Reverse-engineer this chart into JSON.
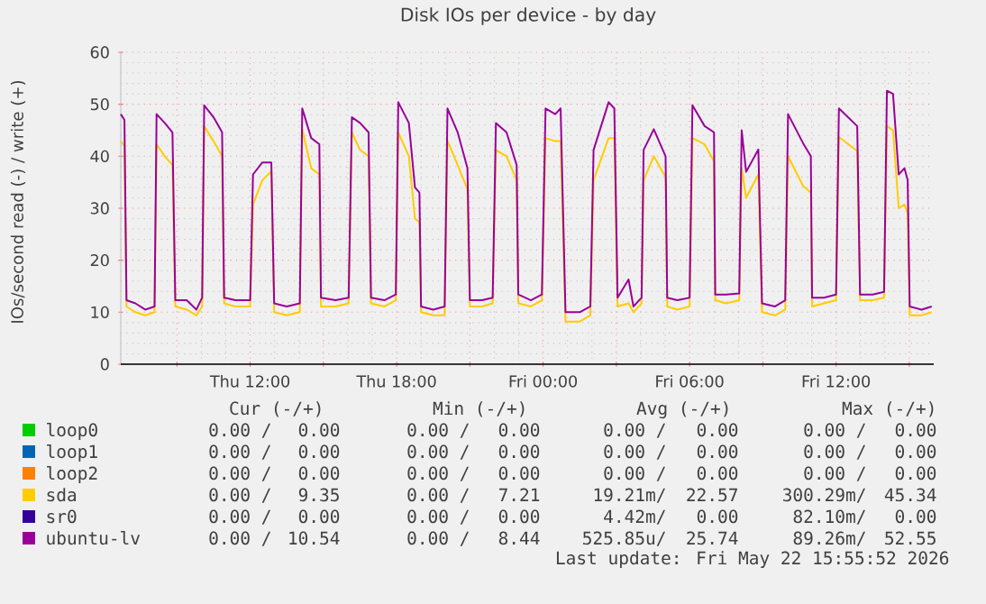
{
  "chart_data": {
    "type": "line",
    "title": "Disk IOs per device - by day",
    "ylabel": "IOs/second read (-) / write (+)",
    "xlim": [
      "2026-05-21T06:42",
      "2026-05-22T16:00"
    ],
    "ylim": [
      0,
      60
    ],
    "xticks": [
      {
        "value": "2026-05-21T09:00",
        "label": null
      },
      {
        "value": "2026-05-21T12:00",
        "label": "Thu 12:00"
      },
      {
        "value": "2026-05-21T15:00",
        "label": null
      },
      {
        "value": "2026-05-21T18:00",
        "label": "Thu 18:00"
      },
      {
        "value": "2026-05-21T21:00",
        "label": null
      },
      {
        "value": "2026-05-22T00:00",
        "label": "Fri 00:00"
      },
      {
        "value": "2026-05-22T03:00",
        "label": null
      },
      {
        "value": "2026-05-22T06:00",
        "label": "Fri 06:00"
      },
      {
        "value": "2026-05-22T09:00",
        "label": null
      },
      {
        "value": "2026-05-22T12:00",
        "label": "Fri 12:00"
      },
      {
        "value": "2026-05-22T15:00",
        "label": null
      }
    ],
    "yticks": [
      0,
      10,
      20,
      30,
      40,
      50,
      60
    ],
    "grid": true,
    "legend": "bottom",
    "series": [
      {
        "name": "loop0",
        "color": "#00cc00"
      },
      {
        "name": "loop1",
        "color": "#0066b3"
      },
      {
        "name": "loop2",
        "color": "#ff8000"
      },
      {
        "name": "sda",
        "color": "#ffcc00",
        "x": [
          "2026-05-21T06:42",
          "2026-05-21T06:51",
          "2026-05-21T06:56",
          "2026-05-21T07:18",
          "2026-05-21T07:42",
          "2026-05-21T08:05",
          "2026-05-21T08:10",
          "2026-05-21T08:30",
          "2026-05-21T08:49",
          "2026-05-21T08:56",
          "2026-05-21T09:24",
          "2026-05-21T09:48",
          "2026-05-21T10:02",
          "2026-05-21T10:07",
          "2026-05-21T10:30",
          "2026-05-21T10:51",
          "2026-05-21T10:56",
          "2026-05-21T11:24",
          "2026-05-21T12:00",
          "2026-05-21T12:07",
          "2026-05-21T12:30",
          "2026-05-21T12:52",
          "2026-05-21T12:59",
          "2026-05-21T13:30",
          "2026-05-21T14:02",
          "2026-05-21T14:08",
          "2026-05-21T14:30",
          "2026-05-21T14:50",
          "2026-05-21T14:54",
          "2026-05-21T15:30",
          "2026-05-21T16:02",
          "2026-05-21T16:10",
          "2026-05-21T16:30",
          "2026-05-21T16:51",
          "2026-05-21T16:57",
          "2026-05-21T17:30",
          "2026-05-21T17:58",
          "2026-05-21T18:04",
          "2026-05-21T18:30",
          "2026-05-21T18:45",
          "2026-05-21T18:56",
          "2026-05-21T19:00",
          "2026-05-21T19:30",
          "2026-05-21T19:58",
          "2026-05-21T20:05",
          "2026-05-21T20:30",
          "2026-05-21T20:54",
          "2026-05-21T21:00",
          "2026-05-21T21:30",
          "2026-05-21T21:56",
          "2026-05-21T22:04",
          "2026-05-21T22:30",
          "2026-05-21T22:55",
          "2026-05-21T22:59",
          "2026-05-21T23:30",
          "2026-05-21T23:57",
          "2026-05-22T00:06",
          "2026-05-22T00:30",
          "2026-05-22T00:43",
          "2026-05-22T00:55",
          "2026-05-22T01:30",
          "2026-05-22T01:56",
          "2026-05-22T02:04",
          "2026-05-22T02:41",
          "2026-05-22T02:55",
          "2026-05-22T03:03",
          "2026-05-22T03:30",
          "2026-05-22T03:42",
          "2026-05-22T04:02",
          "2026-05-22T04:07",
          "2026-05-22T04:32",
          "2026-05-22T05:01",
          "2026-05-22T05:05",
          "2026-05-22T05:30",
          "2026-05-22T06:00",
          "2026-05-22T06:07",
          "2026-05-22T06:37",
          "2026-05-22T07:00",
          "2026-05-22T07:03",
          "2026-05-22T07:30",
          "2026-05-22T08:02",
          "2026-05-22T08:08",
          "2026-05-22T08:19",
          "2026-05-22T08:49",
          "2026-05-22T08:58",
          "2026-05-22T09:30",
          "2026-05-22T09:55",
          "2026-05-22T10:02",
          "2026-05-22T10:39",
          "2026-05-22T10:58",
          "2026-05-22T11:01",
          "2026-05-22T11:30",
          "2026-05-22T12:00",
          "2026-05-22T12:07",
          "2026-05-22T12:52",
          "2026-05-22T12:59",
          "2026-05-22T13:30",
          "2026-05-22T13:58",
          "2026-05-22T14:05",
          "2026-05-22T14:20",
          "2026-05-22T14:34",
          "2026-05-22T14:48",
          "2026-05-22T14:56",
          "2026-05-22T15:01",
          "2026-05-22T15:30",
          "2026-05-22T15:55"
        ],
        "values": [
          42.9,
          42,
          11.1,
          10,
          9.4,
          10,
          42.3,
          40,
          38.3,
          11.1,
          10.5,
          9.4,
          11.1,
          45.8,
          42.9,
          40,
          11.7,
          11.1,
          11.1,
          30.7,
          35.4,
          37.1,
          10,
          9.4,
          10,
          45.2,
          37.7,
          36.5,
          11.1,
          11.1,
          11.7,
          44.6,
          41.2,
          40,
          11.7,
          11.1,
          12.3,
          44.6,
          40,
          28,
          27.3,
          10,
          9.4,
          9.4,
          43,
          38.3,
          33.6,
          11.1,
          11.1,
          11.7,
          41.2,
          40,
          35.4,
          11.7,
          11.1,
          12.3,
          43.5,
          42.9,
          42.9,
          8.2,
          8.2,
          9.4,
          35.4,
          43.5,
          43.5,
          11.1,
          11.7,
          10,
          11.7,
          35.4,
          40,
          36,
          11.1,
          10.5,
          11.1,
          43.5,
          42.3,
          39,
          12.3,
          11.7,
          12.3,
          37.7,
          32,
          36.5,
          10,
          9.4,
          10.5,
          40,
          34.3,
          33,
          11.1,
          11.7,
          12.3,
          43.7,
          41,
          12.3,
          12.3,
          12.8,
          45.8,
          45,
          30,
          30.7,
          29,
          9.4,
          9.4,
          10
        ]
      },
      {
        "name": "sr0",
        "color": "#330099"
      },
      {
        "name": "ubuntu-lv",
        "color": "#990099",
        "x": [
          "2026-05-21T06:42",
          "2026-05-21T06:51",
          "2026-05-21T06:56",
          "2026-05-21T07:18",
          "2026-05-21T07:42",
          "2026-05-21T08:05",
          "2026-05-21T08:10",
          "2026-05-21T08:30",
          "2026-05-21T08:49",
          "2026-05-21T08:56",
          "2026-05-21T09:24",
          "2026-05-21T09:48",
          "2026-05-21T10:02",
          "2026-05-21T10:07",
          "2026-05-21T10:30",
          "2026-05-21T10:51",
          "2026-05-21T10:56",
          "2026-05-21T11:24",
          "2026-05-21T12:00",
          "2026-05-21T12:07",
          "2026-05-21T12:30",
          "2026-05-21T12:52",
          "2026-05-21T12:59",
          "2026-05-21T13:30",
          "2026-05-21T14:02",
          "2026-05-21T14:08",
          "2026-05-21T14:30",
          "2026-05-21T14:50",
          "2026-05-21T14:54",
          "2026-05-21T15:30",
          "2026-05-21T16:02",
          "2026-05-21T16:10",
          "2026-05-21T16:30",
          "2026-05-21T16:51",
          "2026-05-21T16:57",
          "2026-05-21T17:30",
          "2026-05-21T17:58",
          "2026-05-21T18:04",
          "2026-05-21T18:30",
          "2026-05-21T18:45",
          "2026-05-21T18:56",
          "2026-05-21T19:00",
          "2026-05-21T19:30",
          "2026-05-21T19:58",
          "2026-05-21T20:05",
          "2026-05-21T20:30",
          "2026-05-21T20:54",
          "2026-05-21T21:00",
          "2026-05-21T21:30",
          "2026-05-21T21:56",
          "2026-05-21T22:04",
          "2026-05-21T22:30",
          "2026-05-21T22:55",
          "2026-05-21T22:59",
          "2026-05-21T23:30",
          "2026-05-21T23:57",
          "2026-05-22T00:06",
          "2026-05-22T00:30",
          "2026-05-22T00:43",
          "2026-05-22T00:55",
          "2026-05-22T01:30",
          "2026-05-22T01:56",
          "2026-05-22T02:04",
          "2026-05-22T02:41",
          "2026-05-22T02:55",
          "2026-05-22T03:03",
          "2026-05-22T03:30",
          "2026-05-22T03:42",
          "2026-05-22T04:02",
          "2026-05-22T04:07",
          "2026-05-22T04:32",
          "2026-05-22T05:01",
          "2026-05-22T05:05",
          "2026-05-22T05:30",
          "2026-05-22T06:00",
          "2026-05-22T06:07",
          "2026-05-22T06:37",
          "2026-05-22T07:00",
          "2026-05-22T07:03",
          "2026-05-22T07:30",
          "2026-05-22T08:02",
          "2026-05-22T08:08",
          "2026-05-22T08:19",
          "2026-05-22T08:49",
          "2026-05-22T08:58",
          "2026-05-22T09:30",
          "2026-05-22T09:55",
          "2026-05-22T10:02",
          "2026-05-22T10:39",
          "2026-05-22T10:58",
          "2026-05-22T11:01",
          "2026-05-22T11:30",
          "2026-05-22T12:00",
          "2026-05-22T12:07",
          "2026-05-22T12:52",
          "2026-05-22T12:59",
          "2026-05-22T13:30",
          "2026-05-22T13:58",
          "2026-05-22T14:05",
          "2026-05-22T14:20",
          "2026-05-22T14:34",
          "2026-05-22T14:48",
          "2026-05-22T14:56",
          "2026-05-22T15:01",
          "2026-05-22T15:30",
          "2026-05-22T15:55"
        ],
        "values": [
          48.1,
          47,
          12.3,
          11.7,
          10.5,
          11.1,
          48.1,
          46.4,
          44.6,
          12.3,
          12.3,
          10.5,
          12.8,
          49.8,
          47.5,
          44.6,
          12.8,
          12.3,
          12.3,
          36.5,
          38.8,
          38.8,
          11.7,
          11.1,
          11.7,
          49.2,
          43.5,
          42.3,
          12.8,
          12.3,
          12.8,
          47.5,
          46.4,
          44.6,
          12.8,
          12.3,
          13.4,
          50.4,
          46.4,
          34,
          33,
          11.1,
          10.5,
          11.1,
          49.2,
          44.6,
          37.7,
          12.3,
          12.3,
          12.8,
          46.4,
          44.6,
          38.3,
          13.4,
          12.3,
          13.4,
          49.2,
          48.1,
          49.2,
          10,
          10,
          11.1,
          41.2,
          50.4,
          49.2,
          12.8,
          16.3,
          11.1,
          12.8,
          41.2,
          45.2,
          40,
          12.8,
          12.3,
          12.8,
          49.8,
          45.8,
          44.6,
          13.4,
          13.4,
          13.6,
          45,
          37,
          41.3,
          11.7,
          11.1,
          12.3,
          48.1,
          42.5,
          40,
          12.8,
          12.8,
          13.4,
          49.2,
          45.8,
          13.4,
          13.4,
          13.9,
          52.6,
          52,
          36.5,
          37.7,
          35.4,
          11.1,
          10.5,
          11.1
        ]
      }
    ],
    "annotations": [
      "Cur (-/+)",
      "Min (-/+)",
      "Avg (-/+)",
      "Max (-/+)",
      "0.00 /",
      "0.00",
      "0.00 /",
      "0.00",
      "0.00 /",
      "0.00",
      "0.00 /",
      "0.00",
      "0.00 /",
      "0.00",
      "0.00 /",
      "0.00",
      "0.00 /",
      "0.00",
      "0.00 /",
      "0.00",
      "0.00 /",
      "0.00",
      "0.00 /",
      "0.00",
      "0.00 /",
      "0.00",
      "0.00 /",
      "0.00",
      "0.00 /",
      "9.35",
      "0.00 /",
      "7.21",
      "19.21m/",
      "22.57",
      "300.29m/",
      "45.34",
      "0.00 /",
      "0.00",
      "0.00 /",
      "0.00",
      "4.42m/",
      "0.00",
      "82.10m/",
      "0.00",
      "0.00 /",
      "10.54",
      "0.00 /",
      "8.44",
      "525.85u/",
      "25.74",
      "89.26m/",
      "52.55",
      "Last update: Fri May 22 15:55:52 2026"
    ]
  }
}
